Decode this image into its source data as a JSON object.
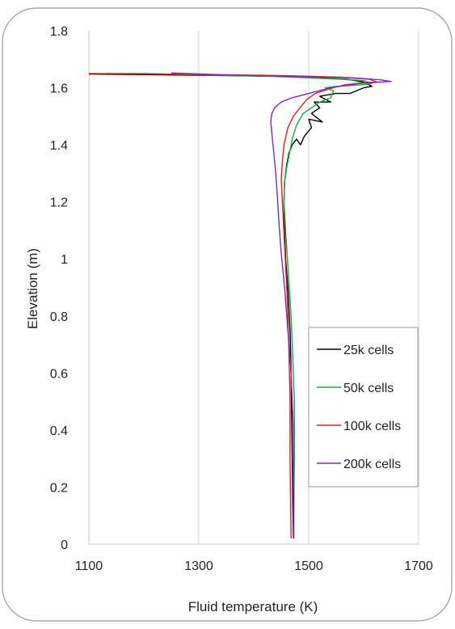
{
  "chart_data": {
    "type": "line",
    "xlabel": "Fluid temperature (K)",
    "ylabel": "Elevation (m)",
    "xlim": [
      1100,
      1700
    ],
    "ylim": [
      0,
      1.8
    ],
    "x_ticks": [
      "1100",
      "1300",
      "1500",
      "1700"
    ],
    "y_ticks": [
      "0",
      "0.2",
      "0.4",
      "0.6",
      "0.8",
      "1",
      "1.2",
      "1.4",
      "1.6",
      "1.8"
    ],
    "grid": "vertical",
    "legend_position": "right",
    "series": [
      {
        "name": "25k cells",
        "color": "#000000",
        "points": [
          [
            1472,
            0.02
          ],
          [
            1471,
            0.15
          ],
          [
            1470,
            0.3
          ],
          [
            1469,
            0.45
          ],
          [
            1468,
            0.6
          ],
          [
            1466,
            0.75
          ],
          [
            1462,
            0.9
          ],
          [
            1458,
            1.0
          ],
          [
            1456,
            1.1
          ],
          [
            1455,
            1.2
          ],
          [
            1456,
            1.27
          ],
          [
            1460,
            1.33
          ],
          [
            1464,
            1.37
          ],
          [
            1470,
            1.4
          ],
          [
            1478,
            1.42
          ],
          [
            1485,
            1.4
          ],
          [
            1492,
            1.43
          ],
          [
            1505,
            1.46
          ],
          [
            1500,
            1.49
          ],
          [
            1525,
            1.48
          ],
          [
            1505,
            1.51
          ],
          [
            1520,
            1.53
          ],
          [
            1510,
            1.55
          ],
          [
            1540,
            1.55
          ],
          [
            1520,
            1.57
          ],
          [
            1550,
            1.58
          ],
          [
            1575,
            1.58
          ],
          [
            1600,
            1.6
          ],
          [
            1615,
            1.605
          ],
          [
            1600,
            1.62
          ],
          [
            1570,
            1.63
          ],
          [
            1450,
            1.64
          ],
          [
            1250,
            1.645
          ],
          [
            1100,
            1.648
          ]
        ]
      },
      {
        "name": "50k cells",
        "color": "#1aa84a",
        "points": [
          [
            1472,
            0.02
          ],
          [
            1473,
            0.15
          ],
          [
            1474,
            0.3
          ],
          [
            1474,
            0.5
          ],
          [
            1471,
            0.65
          ],
          [
            1468,
            0.8
          ],
          [
            1463,
            0.95
          ],
          [
            1458,
            1.1
          ],
          [
            1455,
            1.2
          ],
          [
            1456,
            1.27
          ],
          [
            1460,
            1.32
          ],
          [
            1465,
            1.37
          ],
          [
            1470,
            1.42
          ],
          [
            1478,
            1.47
          ],
          [
            1490,
            1.51
          ],
          [
            1505,
            1.53
          ],
          [
            1520,
            1.55
          ],
          [
            1540,
            1.565
          ],
          [
            1545,
            1.59
          ],
          [
            1530,
            1.6
          ],
          [
            1550,
            1.605
          ],
          [
            1595,
            1.61
          ],
          [
            1615,
            1.615
          ],
          [
            1600,
            1.625
          ],
          [
            1560,
            1.63
          ],
          [
            1430,
            1.64
          ],
          [
            1300,
            1.645
          ],
          [
            1200,
            1.65
          ],
          [
            1130,
            1.65
          ]
        ]
      },
      {
        "name": "100k cells",
        "color": "#e81c1c",
        "points": [
          [
            1468,
            0.02
          ],
          [
            1467,
            0.15
          ],
          [
            1466,
            0.3
          ],
          [
            1466,
            0.5
          ],
          [
            1465,
            0.6
          ],
          [
            1463,
            0.75
          ],
          [
            1460,
            0.9
          ],
          [
            1456,
            1.05
          ],
          [
            1452,
            1.2
          ],
          [
            1450,
            1.28
          ],
          [
            1452,
            1.34
          ],
          [
            1455,
            1.4
          ],
          [
            1462,
            1.46
          ],
          [
            1472,
            1.5
          ],
          [
            1484,
            1.53
          ],
          [
            1497,
            1.56
          ],
          [
            1512,
            1.58
          ],
          [
            1535,
            1.595
          ],
          [
            1565,
            1.61
          ],
          [
            1600,
            1.618
          ],
          [
            1625,
            1.62
          ],
          [
            1610,
            1.63
          ],
          [
            1560,
            1.637
          ],
          [
            1450,
            1.643
          ],
          [
            1300,
            1.647
          ],
          [
            1100,
            1.65
          ]
        ]
      },
      {
        "name": "200k cells",
        "color": "#7a2cc2",
        "points": [
          [
            1473,
            0.02
          ],
          [
            1473,
            0.2
          ],
          [
            1472,
            0.4
          ],
          [
            1468,
            0.6
          ],
          [
            1462,
            0.75
          ],
          [
            1456,
            0.9
          ],
          [
            1450,
            1.02
          ],
          [
            1446,
            1.12
          ],
          [
            1443,
            1.22
          ],
          [
            1440,
            1.3
          ],
          [
            1436,
            1.38
          ],
          [
            1433,
            1.44
          ],
          [
            1431,
            1.48
          ],
          [
            1433,
            1.51
          ],
          [
            1438,
            1.53
          ],
          [
            1450,
            1.55
          ],
          [
            1470,
            1.565
          ],
          [
            1500,
            1.58
          ],
          [
            1540,
            1.6
          ],
          [
            1590,
            1.615
          ],
          [
            1630,
            1.62
          ],
          [
            1650,
            1.622
          ],
          [
            1630,
            1.628
          ],
          [
            1580,
            1.635
          ],
          [
            1450,
            1.64
          ],
          [
            1350,
            1.645
          ],
          [
            1280,
            1.65
          ],
          [
            1250,
            1.652
          ]
        ]
      }
    ]
  }
}
